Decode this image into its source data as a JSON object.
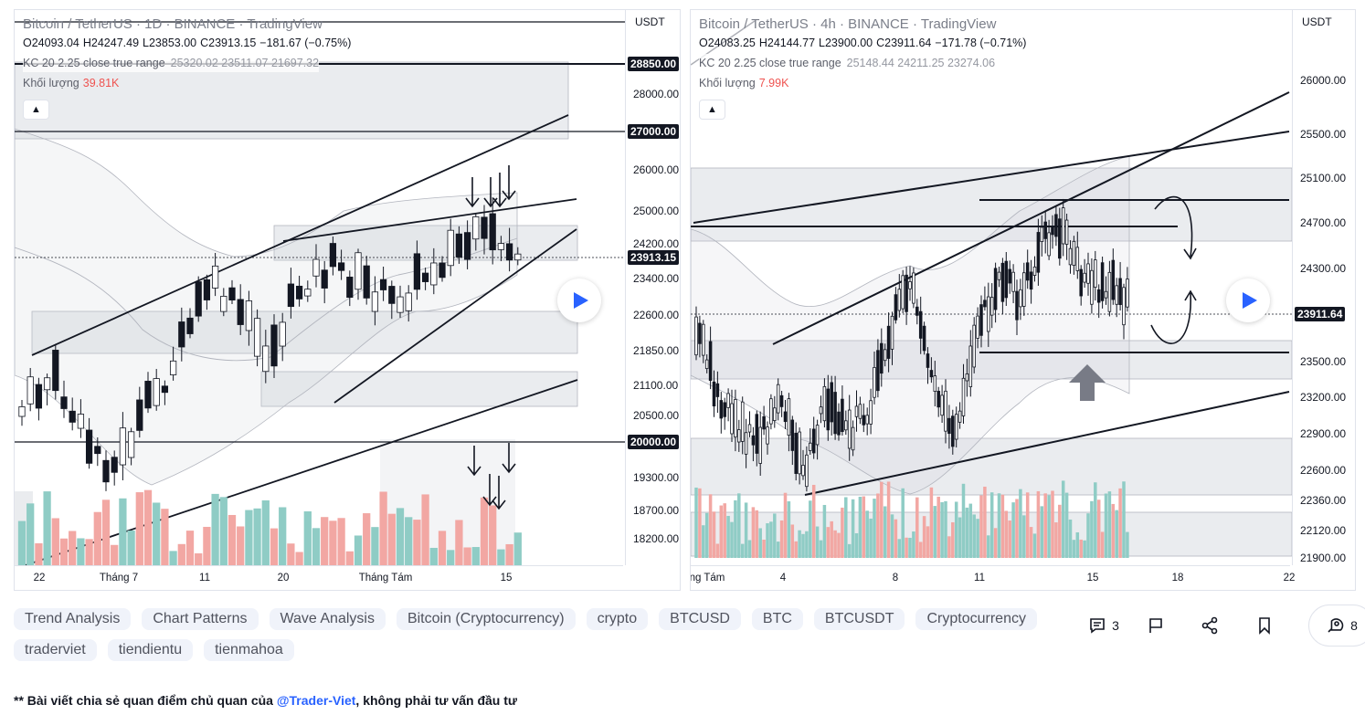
{
  "left_chart": {
    "title": "Bitcoin / TetherUS · 1D · BINANCE · TradingView",
    "ohlc": {
      "o": "O24093.04",
      "h": "H24247.49",
      "l": "L23853.00",
      "c": "C23913.15",
      "chg": "−181.67 (−0.75%)"
    },
    "indicator_label": "KC 20 2.25 close true range",
    "indicator_values": "25320.02  23511.07  21697.32",
    "volume_label": "Khối lượng",
    "volume_value": "39.81K",
    "currency": "USDT",
    "price_ticks": [
      "28000.00",
      "26000.00",
      "25000.00",
      "24200.00",
      "23400.00",
      "22600.00",
      "21850.00",
      "21100.00",
      "20500.00",
      "19300.00",
      "18700.00",
      "18200.00"
    ],
    "price_tags": [
      "28850.00",
      "27000.00",
      "23913.15",
      "20000.00"
    ],
    "time_ticks": [
      "22",
      "Tháng 7",
      "11",
      "20",
      "Tháng Tám",
      "15"
    ]
  },
  "right_chart": {
    "title": "Bitcoin / TetherUS · 4h · BINANCE · TradingView",
    "ohlc": {
      "o": "O24083.25",
      "h": "H24144.77",
      "l": "L23900.00",
      "c": "C23911.64",
      "chg": "−171.78 (−0.71%)"
    },
    "indicator_label": "KC 20 2.25 close true range",
    "indicator_values": "25148.44  24211.25  23274.06",
    "volume_label": "Khối lượng",
    "volume_value": "7.99K",
    "currency": "USDT",
    "price_ticks": [
      "26000.00",
      "25500.00",
      "25100.00",
      "24700.00",
      "24300.00",
      "23500.00",
      "23200.00",
      "22900.00",
      "22600.00",
      "22360.00",
      "22120.00",
      "21900.00"
    ],
    "price_tags": [
      "23911.64"
    ],
    "time_ticks": [
      "ng Tám",
      "4",
      "8",
      "11",
      "15",
      "18",
      "22"
    ]
  },
  "tags": [
    "Trend Analysis",
    "Chart Patterns",
    "Wave Analysis",
    "Bitcoin (Cryptocurrency)",
    "crypto",
    "BTCUSD",
    "BTC",
    "BTCUSDT",
    "Cryptocurrency",
    "traderviet",
    "tiendientu",
    "tienmahoa"
  ],
  "actions": {
    "comments_count": "3",
    "boost_count": "8"
  },
  "disclaimer": {
    "prefix": "** Bài viết chia sẻ quan điểm chủ quan của ",
    "mention": "@Trader-Viet",
    "suffix": ", không phải tư vấn đầu tư"
  },
  "colors": {
    "up": "#26a69a",
    "down": "#ef5350",
    "vol_up": "#8fccc5",
    "vol_down": "#f2a7a3",
    "zone": "#d1d4dc",
    "text": "#131722",
    "accent": "#2962ff"
  },
  "icons": [
    "comment-icon",
    "flag-icon",
    "share-icon",
    "bookmark-icon",
    "rocket-icon",
    "play-icon",
    "chevron-up-icon"
  ]
}
